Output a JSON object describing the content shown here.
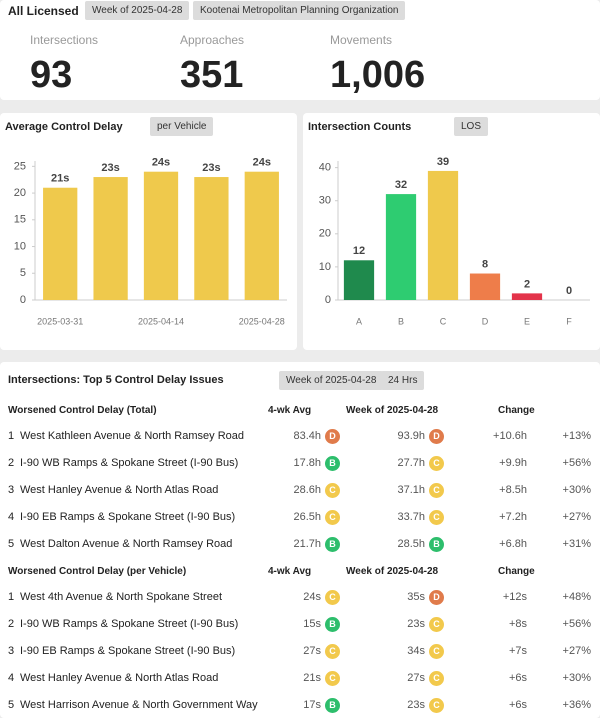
{
  "header": {
    "title": "All Licensed",
    "chips": [
      "Week of 2025-04-28",
      "Kootenai Metropolitan Planning Organization"
    ]
  },
  "kpis": [
    {
      "label": "Intersections",
      "value": 93
    },
    {
      "label": "Approaches",
      "value": 351
    },
    {
      "label": "Movements",
      "value": {
        "value": 1006,
        "label": "1,006"
      }
    }
  ],
  "chart_data": [
    {
      "type": "bar",
      "title": "Average Control Delay",
      "button": "per Vehicle",
      "categories": [
        "2025-03-31",
        null,
        "2025-04-14",
        null,
        "2025-04-28"
      ],
      "values": [
        21,
        23,
        24,
        23,
        24
      ],
      "value_labels": [
        "21s",
        "23s",
        "24s",
        "23s",
        "24s"
      ],
      "color": "#efc94c",
      "ylim": [
        0,
        26
      ],
      "yticks": [
        0,
        5,
        10,
        15,
        20,
        25
      ]
    },
    {
      "type": "bar",
      "title": "Intersection Counts",
      "button": "LOS",
      "categories": [
        "A",
        "B",
        "C",
        "D",
        "E",
        "F"
      ],
      "values": [
        12,
        32,
        39,
        8,
        2,
        0
      ],
      "colors": [
        "#1f8a4d",
        "#2ecc71",
        "#efc94c",
        "#ee7d4a",
        "#e3334a",
        "#cccccc"
      ],
      "ylim": [
        0,
        42
      ],
      "yticks": [
        0,
        10,
        20,
        30,
        40
      ]
    }
  ],
  "table": {
    "title": "Intersections: Top 5 Control Delay Issues",
    "chips": [
      "Week of 2025-04-28",
      "24 Hrs"
    ],
    "sections": [
      {
        "title": "Worsened Control Delay (Total)",
        "columns": [
          "4-wk Avg",
          "Week of 2025-04-28",
          "Change"
        ],
        "rows": [
          {
            "rank": 1,
            "name": "West Kathleen Avenue & North Ramsey Road",
            "avg": "83.4h",
            "avg_los": "D",
            "week": "93.9h",
            "week_los": "D",
            "change": "+10.6h",
            "pct": "+13%"
          },
          {
            "rank": 2,
            "name": "I-90 WB Ramps & Spokane Street (I-90 Bus)",
            "avg": "17.8h",
            "avg_los": "B",
            "week": "27.7h",
            "week_los": "C",
            "change": "+9.9h",
            "pct": "+56%"
          },
          {
            "rank": 3,
            "name": "West Hanley Avenue & North Atlas Road",
            "avg": "28.6h",
            "avg_los": "C",
            "week": "37.1h",
            "week_los": "C",
            "change": "+8.5h",
            "pct": "+30%"
          },
          {
            "rank": 4,
            "name": "I-90 EB Ramps & Spokane Street (I-90 Bus)",
            "avg": "26.5h",
            "avg_los": "C",
            "week": "33.7h",
            "week_los": "C",
            "change": "+7.2h",
            "pct": "+27%"
          },
          {
            "rank": 5,
            "name": "West Dalton Avenue & North Ramsey Road",
            "avg": "21.7h",
            "avg_los": "B",
            "week": "28.5h",
            "week_los": "B",
            "change": "+6.8h",
            "pct": "+31%"
          }
        ]
      },
      {
        "title": "Worsened Control Delay (per Vehicle)",
        "columns": [
          "4-wk Avg",
          "Week of 2025-04-28",
          "Change"
        ],
        "rows": [
          {
            "rank": 1,
            "name": "West 4th Avenue & North Spokane Street",
            "avg": "24s",
            "avg_los": "C",
            "week": "35s",
            "week_los": "D",
            "change": "+12s",
            "pct": "+48%"
          },
          {
            "rank": 2,
            "name": "I-90 WB Ramps & Spokane Street (I-90 Bus)",
            "avg": "15s",
            "avg_los": "B",
            "week": "23s",
            "week_los": "C",
            "change": "+8s",
            "pct": "+56%"
          },
          {
            "rank": 3,
            "name": "I-90 EB Ramps & Spokane Street (I-90 Bus)",
            "avg": "27s",
            "avg_los": "C",
            "week": "34s",
            "week_los": "C",
            "change": "+7s",
            "pct": "+27%"
          },
          {
            "rank": 4,
            "name": "West Hanley Avenue & North Atlas Road",
            "avg": "21s",
            "avg_los": "C",
            "week": "27s",
            "week_los": "C",
            "change": "+6s",
            "pct": "+30%"
          },
          {
            "rank": 5,
            "name": "West Harrison Avenue & North Government Way",
            "avg": "17s",
            "avg_los": "B",
            "week": "23s",
            "week_los": "C",
            "change": "+6s",
            "pct": "+36%"
          }
        ]
      }
    ]
  }
}
